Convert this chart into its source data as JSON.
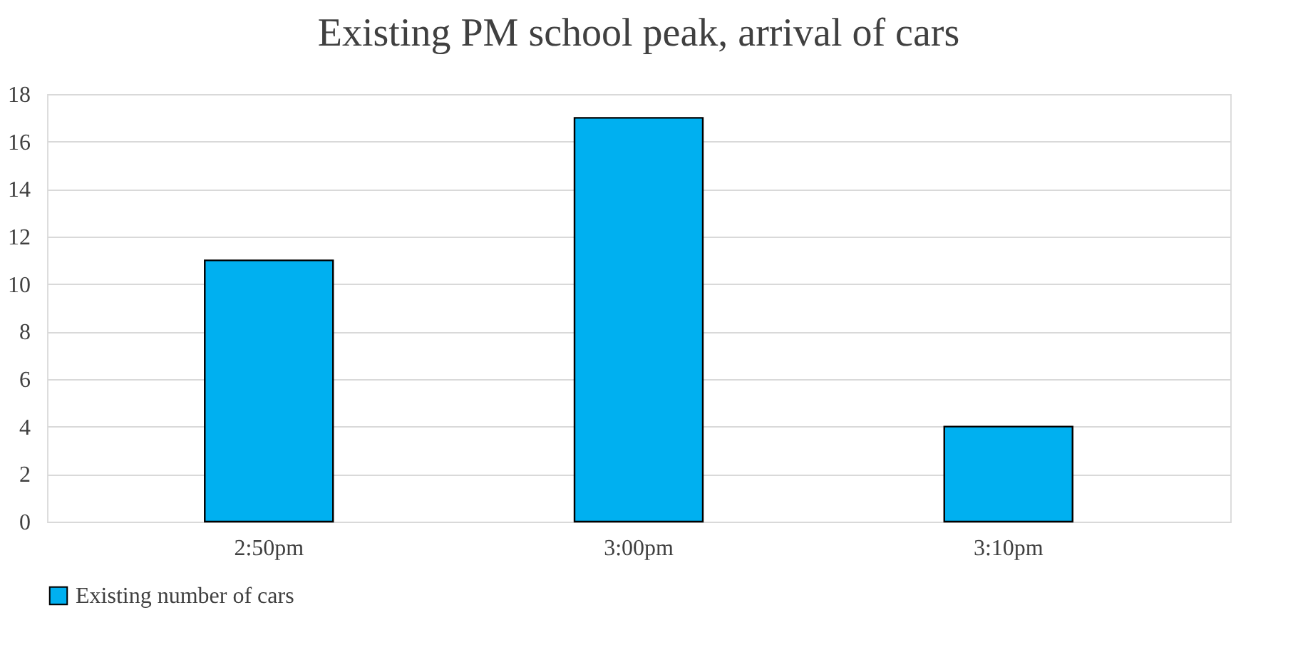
{
  "chart_data": {
    "type": "bar",
    "title": "Existing PM school peak, arrival of cars",
    "categories": [
      "2:50pm",
      "3:00pm",
      "3:10pm"
    ],
    "series": [
      {
        "name": "Existing number of cars",
        "color": "#00b0f0",
        "values": [
          11,
          17,
          4
        ]
      }
    ],
    "ylim": [
      0,
      18
    ],
    "yticks": [
      0,
      2,
      4,
      6,
      8,
      10,
      12,
      14,
      16,
      18
    ],
    "grid": "y",
    "legend": "bottom"
  }
}
